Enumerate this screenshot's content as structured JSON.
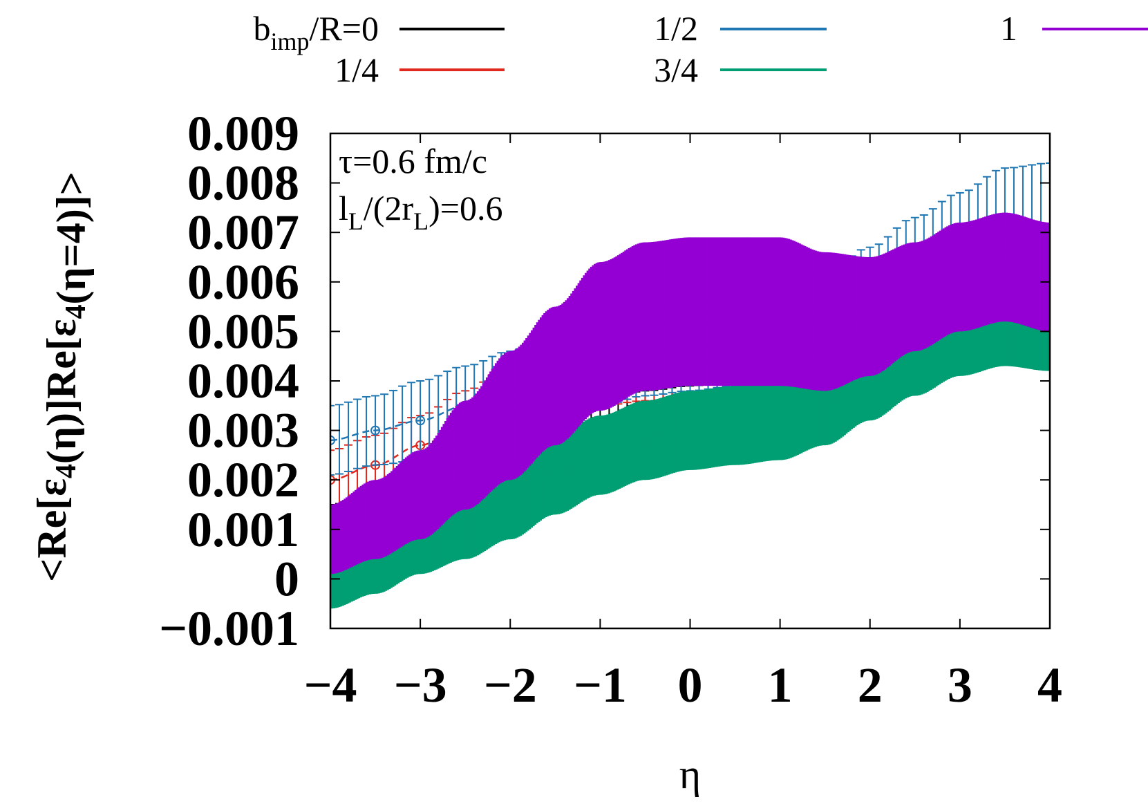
{
  "chart_data": {
    "type": "line",
    "xlabel": "η",
    "ylabel": "<Re[ε4(η)]Re[ε4(η=4)]>",
    "xlim": [
      -4,
      4
    ],
    "ylim": [
      -0.001,
      0.009
    ],
    "x_ticks": [
      "−4",
      "−3",
      "−2",
      "−1",
      "0",
      "1",
      "2",
      "3",
      "4"
    ],
    "y_ticks": [
      "0.009",
      "0.008",
      "0.007",
      "0.006",
      "0.005",
      "0.004",
      "0.003",
      "0.002",
      "0.001",
      "0",
      "−0.001"
    ],
    "annotations": [
      "τ=0.6 fm/c",
      "lL/(2rL)=0.6"
    ],
    "legend_title": "bimp/R=",
    "legend_position": "top",
    "x": [
      -4.0,
      -3.5,
      -3.0,
      -2.5,
      -2.0,
      -1.5,
      -1.0,
      -0.5,
      0.0,
      0.5,
      1.0,
      1.5,
      2.0,
      2.5,
      3.0,
      3.5,
      4.0
    ],
    "series": [
      {
        "name": "0",
        "color": "#000000",
        "values": [
          0.0008,
          0.001,
          0.0013,
          0.0016,
          0.002,
          0.0024,
          0.0028,
          0.003,
          0.0031,
          0.0032,
          0.0034,
          0.0038,
          0.0043,
          0.0048,
          0.0052,
          0.0054,
          0.0054
        ],
        "errors": [
          0.0007,
          0.0007,
          0.0007,
          0.0007,
          0.0008,
          0.0008,
          0.0008,
          0.0008,
          0.0008,
          0.0008,
          0.0008,
          0.0008,
          0.0008,
          0.0008,
          0.0009,
          0.0009,
          0.0009
        ]
      },
      {
        "name": "1/4",
        "color": "#e0281e",
        "values": [
          0.002,
          0.0023,
          0.0027,
          0.0031,
          0.0036,
          0.004,
          0.0043,
          0.0044,
          0.0044,
          0.0044,
          0.0045,
          0.0047,
          0.005,
          0.0053,
          0.0056,
          0.0058,
          0.0058
        ],
        "errors": [
          0.0006,
          0.0006,
          0.0006,
          0.0007,
          0.0007,
          0.0007,
          0.0008,
          0.0008,
          0.0008,
          0.0008,
          0.0008,
          0.0008,
          0.0008,
          0.0008,
          0.0008,
          0.0008,
          0.0008
        ]
      },
      {
        "name": "1/2",
        "color": "#1f77b4",
        "values": [
          0.0028,
          0.003,
          0.0032,
          0.0035,
          0.0038,
          0.0041,
          0.0044,
          0.0046,
          0.0047,
          0.0048,
          0.0049,
          0.0052,
          0.0056,
          0.0061,
          0.0066,
          0.007,
          0.0071
        ],
        "errors": [
          0.0007,
          0.0007,
          0.0008,
          0.0008,
          0.0008,
          0.0009,
          0.0009,
          0.0009,
          0.0009,
          0.0009,
          0.0009,
          0.001,
          0.0011,
          0.0012,
          0.0012,
          0.0013,
          0.0013
        ]
      },
      {
        "name": "3/4",
        "color": "#009e73",
        "values": [
          0.0001,
          0.0004,
          0.0008,
          0.0012,
          0.0016,
          0.0021,
          0.0025,
          0.0028,
          0.003,
          0.0031,
          0.0032,
          0.0036,
          0.0041,
          0.0046,
          0.005,
          0.0053,
          0.0052
        ],
        "errors": [
          0.0007,
          0.0007,
          0.0007,
          0.0008,
          0.0008,
          0.0008,
          0.0008,
          0.0008,
          0.0008,
          0.0008,
          0.0008,
          0.0009,
          0.0009,
          0.0009,
          0.0009,
          0.001,
          0.001
        ]
      },
      {
        "name": "1",
        "color": "#9400d3",
        "values": [
          0.0008,
          0.0012,
          0.0017,
          0.0025,
          0.0033,
          0.0041,
          0.0049,
          0.0053,
          0.0054,
          0.0054,
          0.0054,
          0.0052,
          0.0053,
          0.0057,
          0.0061,
          0.0063,
          0.0061
        ],
        "errors": [
          0.0007,
          0.0008,
          0.0009,
          0.0011,
          0.0013,
          0.0014,
          0.0015,
          0.0015,
          0.0015,
          0.0015,
          0.0015,
          0.0014,
          0.0012,
          0.0011,
          0.0011,
          0.0011,
          0.0011
        ]
      }
    ]
  }
}
